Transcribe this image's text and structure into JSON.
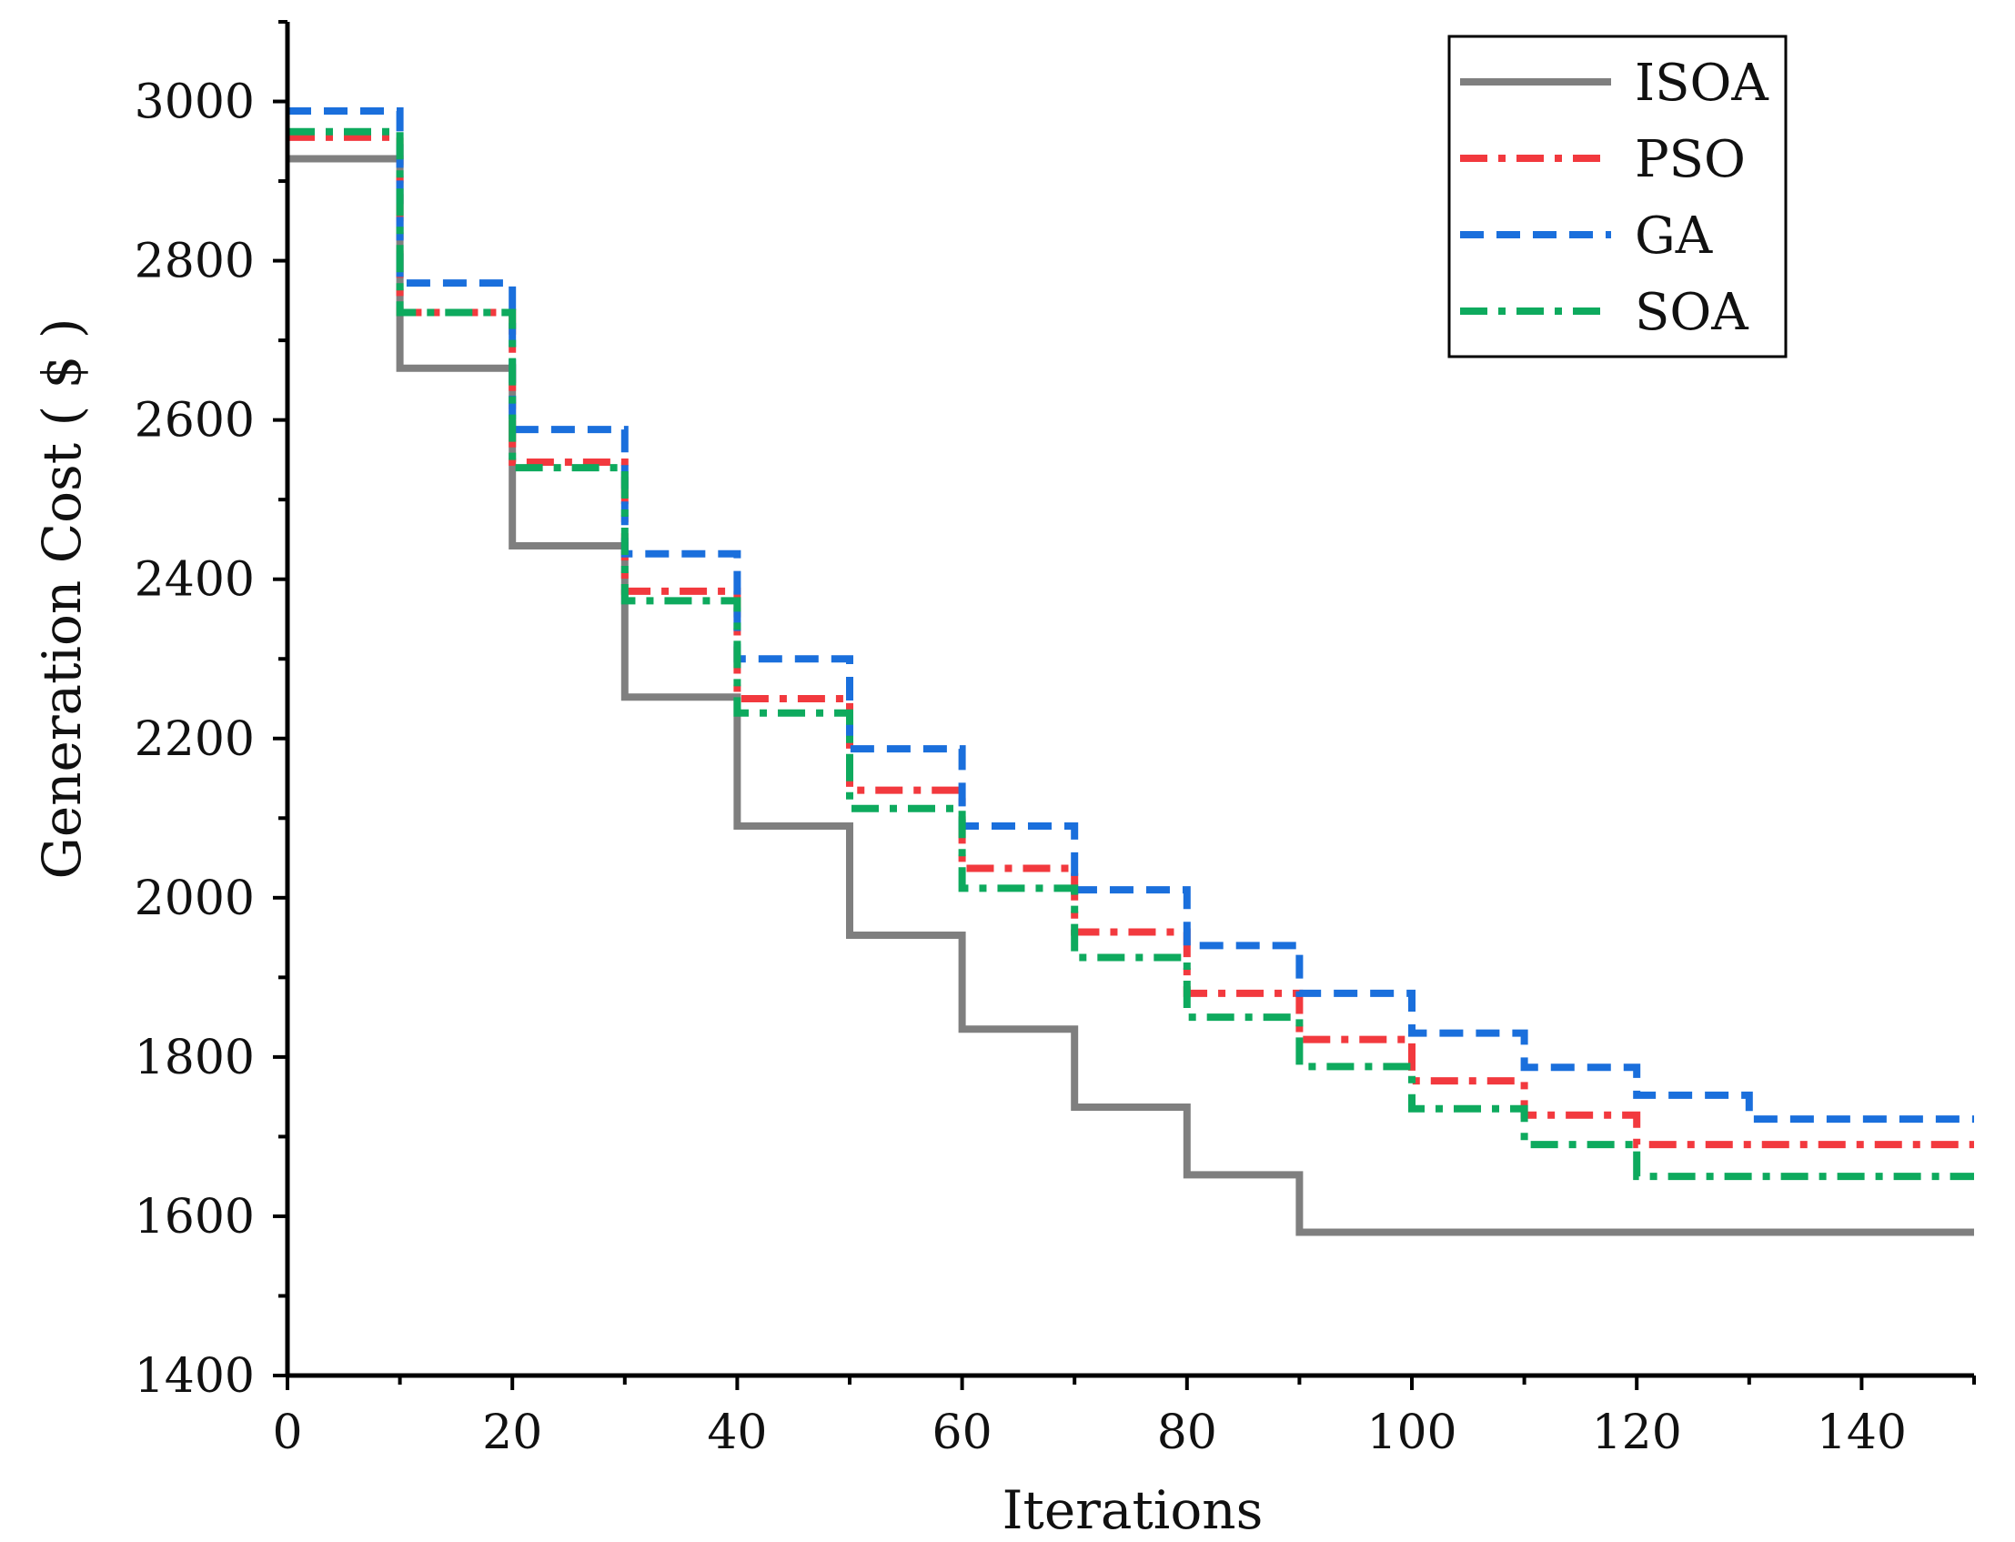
{
  "chart_data": {
    "type": "line",
    "title": "",
    "xlabel": "Iterations",
    "ylabel": "Generation Cost ( $ )",
    "xlim": [
      0,
      150
    ],
    "ylim": [
      1400,
      3100
    ],
    "x_ticks": [
      0,
      20,
      40,
      60,
      80,
      100,
      120,
      140
    ],
    "y_ticks": [
      1400,
      1600,
      1800,
      2000,
      2200,
      2400,
      2600,
      2800,
      3000
    ],
    "grid": false,
    "legend_position": "top-right",
    "step_breaks": [
      0,
      10,
      20,
      30,
      40,
      50,
      60,
      70,
      80,
      90,
      100,
      110,
      120,
      130,
      150
    ],
    "series": [
      {
        "name": "ISOA",
        "color": "#7f7f7f",
        "line_style": "solid",
        "values": [
          2928,
          2665,
          2442,
          2252,
          2090,
          1953,
          1835,
          1737,
          1652,
          1580,
          1580,
          1580,
          1580,
          1580
        ]
      },
      {
        "name": "PSO",
        "color": "#f2393e",
        "line_style": "dash-dot",
        "values": [
          2955,
          2735,
          2547,
          2385,
          2250,
          2135,
          2037,
          1957,
          1880,
          1822,
          1770,
          1727,
          1690,
          1690
        ]
      },
      {
        "name": "GA",
        "color": "#1a6fdc",
        "line_style": "dashed",
        "values": [
          2988,
          2772,
          2588,
          2432,
          2300,
          2187,
          2090,
          2010,
          1940,
          1880,
          1830,
          1787,
          1752,
          1722
        ]
      },
      {
        "name": "SOA",
        "color": "#0eaa5e",
        "line_style": "dash-dot",
        "values": [
          2962,
          2735,
          2540,
          2373,
          2232,
          2112,
          2012,
          1925,
          1850,
          1788,
          1735,
          1690,
          1650,
          1650
        ]
      }
    ]
  }
}
